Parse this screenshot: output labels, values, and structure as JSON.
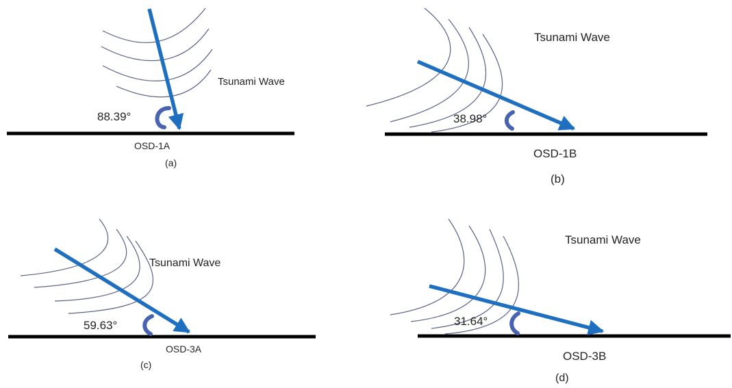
{
  "colors": {
    "arrow": "#1f6fc0",
    "angle_arc": "#4a63b0",
    "ground": "#000000",
    "wave": "#5a5f8a"
  },
  "panels": [
    {
      "id": "a",
      "station": "OSD-1A",
      "angle": "88.39°",
      "angle_deg": 88.39,
      "wave_label": "Tsunami Wave",
      "caption": "(a)"
    },
    {
      "id": "b",
      "station": "OSD-1B",
      "angle": "38.98°",
      "angle_deg": 38.98,
      "wave_label": "Tsunami Wave",
      "caption": "(b)"
    },
    {
      "id": "c",
      "station": "OSD-3A",
      "angle": "59.63°",
      "angle_deg": 59.63,
      "wave_label": "Tsunami Wave",
      "caption": "(c)"
    },
    {
      "id": "d",
      "station": "OSD-3B",
      "angle": "31.64°",
      "angle_deg": 31.64,
      "wave_label": "Tsunami Wave",
      "caption": "(d)"
    }
  ]
}
